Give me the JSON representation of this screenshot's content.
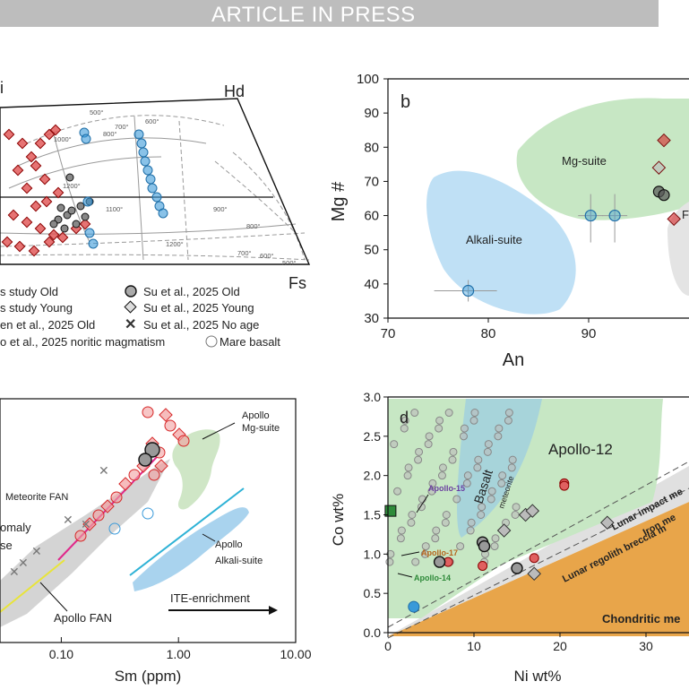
{
  "banner": "ARTICLE IN PRESS",
  "panel_a": {
    "corner_left": "i",
    "corner_right": "Hd",
    "corner_bottom": "Fs",
    "isotherms_upper": [
      "500°",
      "700°",
      "800°",
      "1000°",
      "600°",
      "1200°",
      "1100°"
    ],
    "isotherms_lower": [
      "900°",
      "800°",
      "1200°",
      "700°",
      "600°",
      "500°"
    ],
    "legend": [
      {
        "label": "s study Old"
      },
      {
        "label": "s study Young"
      },
      {
        "label": "en et al., 2025 Old"
      },
      {
        "label": "o et al., 2025 noritic magmatism"
      },
      {
        "label": "Su et al., 2025 Old"
      },
      {
        "label": "Su et al., 2025 Young"
      },
      {
        "label": "Su et al., 2025 No age"
      },
      {
        "label": "Mare basalt"
      }
    ]
  },
  "colors": {
    "red": "#d62728",
    "blue": "#3a9ad9",
    "green_field": "#c7e7c4",
    "blue_field": "#bfe0f5",
    "orange": "#e8a54a",
    "grey": "#8a8a8a"
  },
  "chart_data": [
    {
      "type": "scatter",
      "panel": "b",
      "xlabel": "An",
      "ylabel": "Mg #",
      "xlim": [
        70,
        100
      ],
      "ylim": [
        30,
        100
      ],
      "xticks": [
        70,
        80,
        90
      ],
      "yticks": [
        30,
        40,
        50,
        60,
        70,
        80,
        90,
        100
      ],
      "fields": [
        "Alkali-suite",
        "Mg-suite",
        "F"
      ],
      "points": [
        {
          "x": 78,
          "y": 38,
          "color": "blue"
        },
        {
          "x": 90.2,
          "y": 60,
          "color": "blue"
        },
        {
          "x": 92.6,
          "y": 60,
          "color": "blue"
        },
        {
          "x": 97.5,
          "y": 82,
          "color": "red"
        },
        {
          "x": 97,
          "y": 74,
          "color": "grey"
        },
        {
          "x": 97,
          "y": 67,
          "color": "black"
        },
        {
          "x": 97.5,
          "y": 66,
          "color": "black"
        },
        {
          "x": 98.5,
          "y": 59,
          "color": "red"
        }
      ]
    },
    {
      "type": "scatter",
      "panel": "c",
      "xlabel": "Sm (ppm)",
      "xscale": "log",
      "xlim": [
        0.03,
        10
      ],
      "xticks": [
        "0.10",
        "1.00",
        "10.00"
      ],
      "annotations": [
        "Apollo Mg-suite",
        "Meteorite FAN",
        "omaly",
        "se",
        "Apollo Alkali-suite",
        "ITE-enrichment",
        "Apollo FAN"
      ]
    },
    {
      "type": "scatter",
      "panel": "d",
      "xlabel": "Ni wt%",
      "ylabel": "Co wt%",
      "xlim": [
        0,
        35
      ],
      "ylim": [
        0,
        3
      ],
      "xticks": [
        "0",
        "10",
        "20",
        "30"
      ],
      "yticks": [
        "0.0",
        "0.5",
        "1.0",
        "1.5",
        "2.0",
        "2.5",
        "3.0"
      ],
      "annotations": [
        "Apollo-12",
        "Basalt",
        "meteorite",
        "Apollo-15",
        "Apollo-17",
        "Apollo-14",
        "Lunar impact me",
        "Iron me",
        "Lunar regolith breccia m",
        "Chondritic me"
      ]
    }
  ]
}
